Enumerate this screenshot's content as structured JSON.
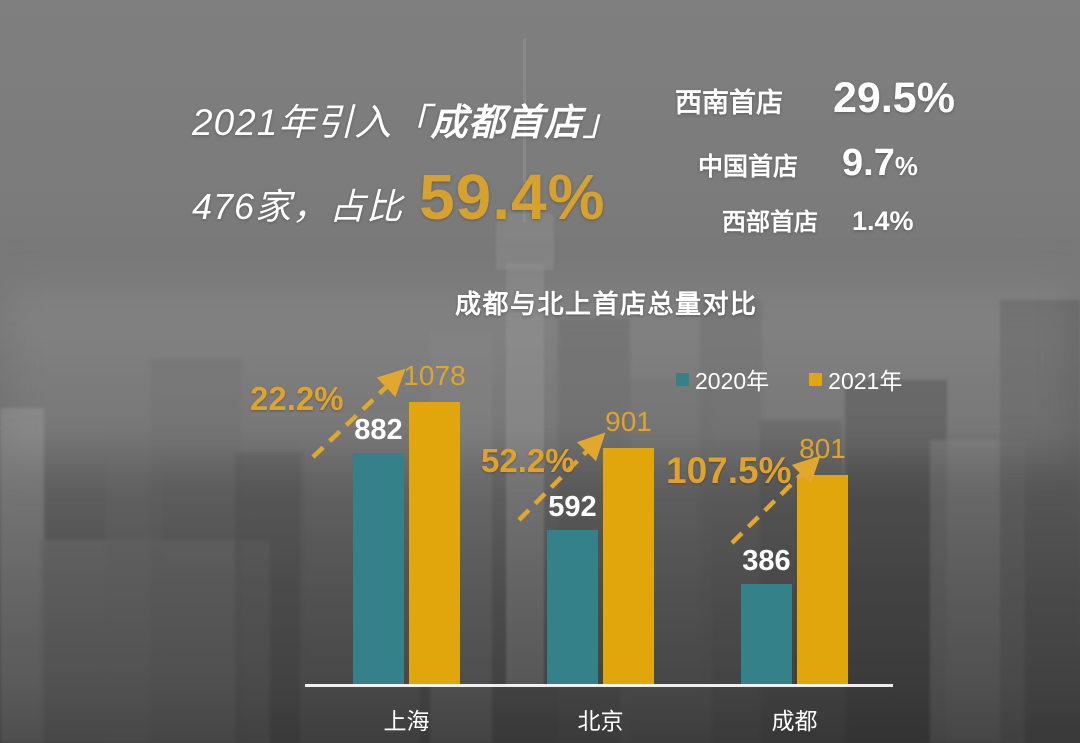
{
  "headline": {
    "line1_prefix": "2021年引入「",
    "line1_highlight": "成都首店",
    "line1_suffix": "」",
    "line2_text": "476家，占比",
    "line2_value": "59.4%"
  },
  "stats": {
    "rows": [
      {
        "label": "西南首店",
        "number": "29.5",
        "symbol": "%"
      },
      {
        "label": "中国首店",
        "number": "9.7",
        "symbol": "%"
      },
      {
        "label": "西部首店",
        "number": "1.4",
        "symbol": "%"
      }
    ]
  },
  "chart_data": {
    "type": "bar",
    "title": "成都与北上首店总量对比",
    "categories": [
      "上海",
      "北京",
      "成都"
    ],
    "series": [
      {
        "name": "2020年",
        "color": "#35818A",
        "values": [
          882,
          592,
          386
        ]
      },
      {
        "name": "2021年",
        "color": "#E2A60D",
        "values": [
          1078,
          901,
          801
        ]
      }
    ],
    "growth_labels": [
      "22.2%",
      "52.2%",
      "107.5%"
    ],
    "ylim": [
      0,
      1100
    ],
    "grid": false,
    "legend_position": "top-right",
    "axis_line_color": "#FFFFFF",
    "value_label_color_2020": "#FFFFFF",
    "value_label_color_2021": "#DFA428"
  },
  "colors": {
    "teal": "#35818A",
    "gold_bar": "#E2A60D",
    "gold_text": "#D7A12D",
    "arrow_gold": "#E2A72E",
    "white": "#FFFFFF",
    "background_gray": "#757575"
  }
}
